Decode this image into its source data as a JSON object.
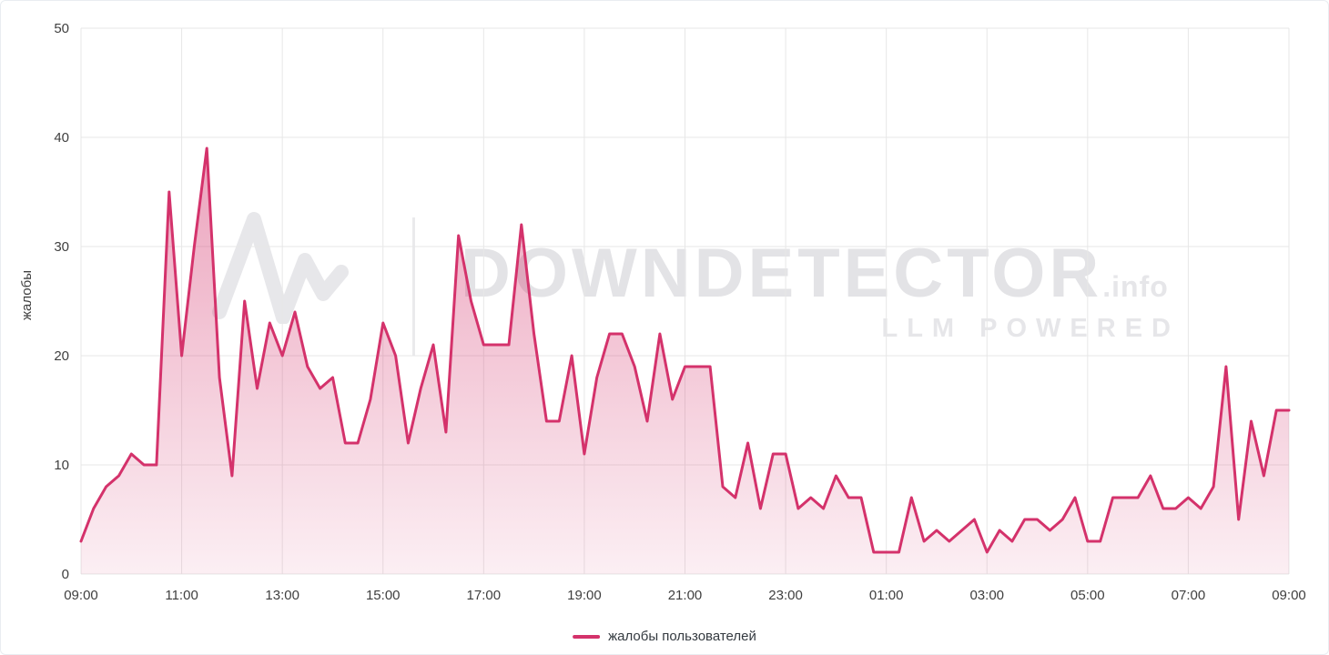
{
  "watermark": {
    "brand": "DOWNDETECTOR",
    "suffix": ".info",
    "tagline": "LLM POWERED"
  },
  "chart_data": {
    "type": "area",
    "title": "",
    "xlabel": "",
    "ylabel": "жалобы",
    "legend": "жалобы пользователей",
    "color": "#d4326b",
    "grid": true,
    "legend_position": "bottom",
    "ylim": [
      0,
      50
    ],
    "y_ticks": [
      0,
      10,
      20,
      30,
      40,
      50
    ],
    "x_ticks": [
      "09:00",
      "11:00",
      "13:00",
      "15:00",
      "17:00",
      "19:00",
      "21:00",
      "23:00",
      "01:00",
      "03:00",
      "05:00",
      "07:00",
      "09:00"
    ],
    "points": [
      [
        "09:00",
        3
      ],
      [
        "09:15",
        6
      ],
      [
        "09:30",
        8
      ],
      [
        "09:45",
        9
      ],
      [
        "10:00",
        11
      ],
      [
        "10:15",
        10
      ],
      [
        "10:30",
        10
      ],
      [
        "10:45",
        35
      ],
      [
        "11:00",
        20
      ],
      [
        "11:15",
        30
      ],
      [
        "11:30",
        39
      ],
      [
        "11:45",
        18
      ],
      [
        "12:00",
        9
      ],
      [
        "12:15",
        25
      ],
      [
        "12:30",
        17
      ],
      [
        "12:45",
        23
      ],
      [
        "13:00",
        20
      ],
      [
        "13:15",
        24
      ],
      [
        "13:30",
        19
      ],
      [
        "13:45",
        17
      ],
      [
        "14:00",
        18
      ],
      [
        "14:15",
        12
      ],
      [
        "14:30",
        12
      ],
      [
        "14:45",
        16
      ],
      [
        "15:00",
        23
      ],
      [
        "15:15",
        20
      ],
      [
        "15:30",
        12
      ],
      [
        "15:45",
        17
      ],
      [
        "16:00",
        21
      ],
      [
        "16:15",
        13
      ],
      [
        "16:30",
        31
      ],
      [
        "16:45",
        25
      ],
      [
        "17:00",
        21
      ],
      [
        "17:15",
        21
      ],
      [
        "17:30",
        21
      ],
      [
        "17:45",
        32
      ],
      [
        "18:00",
        22
      ],
      [
        "18:15",
        14
      ],
      [
        "18:30",
        14
      ],
      [
        "18:45",
        20
      ],
      [
        "19:00",
        11
      ],
      [
        "19:15",
        18
      ],
      [
        "19:30",
        22
      ],
      [
        "19:45",
        22
      ],
      [
        "20:00",
        19
      ],
      [
        "20:15",
        14
      ],
      [
        "20:30",
        22
      ],
      [
        "20:45",
        16
      ],
      [
        "21:00",
        19
      ],
      [
        "21:15",
        19
      ],
      [
        "21:30",
        19
      ],
      [
        "21:45",
        8
      ],
      [
        "22:00",
        7
      ],
      [
        "22:15",
        12
      ],
      [
        "22:30",
        6
      ],
      [
        "22:45",
        11
      ],
      [
        "23:00",
        11
      ],
      [
        "23:15",
        6
      ],
      [
        "23:30",
        7
      ],
      [
        "23:45",
        6
      ],
      [
        "00:00",
        9
      ],
      [
        "00:15",
        7
      ],
      [
        "00:30",
        7
      ],
      [
        "00:45",
        2
      ],
      [
        "01:00",
        2
      ],
      [
        "01:15",
        2
      ],
      [
        "01:30",
        7
      ],
      [
        "01:45",
        3
      ],
      [
        "02:00",
        4
      ],
      [
        "02:15",
        3
      ],
      [
        "02:30",
        4
      ],
      [
        "02:45",
        5
      ],
      [
        "03:00",
        2
      ],
      [
        "03:15",
        4
      ],
      [
        "03:30",
        3
      ],
      [
        "03:45",
        5
      ],
      [
        "04:00",
        5
      ],
      [
        "04:15",
        4
      ],
      [
        "04:30",
        5
      ],
      [
        "04:45",
        7
      ],
      [
        "05:00",
        3
      ],
      [
        "05:15",
        3
      ],
      [
        "05:30",
        7
      ],
      [
        "05:45",
        7
      ],
      [
        "06:00",
        7
      ],
      [
        "06:15",
        9
      ],
      [
        "06:30",
        6
      ],
      [
        "06:45",
        6
      ],
      [
        "07:00",
        7
      ],
      [
        "07:15",
        6
      ],
      [
        "07:30",
        8
      ],
      [
        "07:45",
        19
      ],
      [
        "08:00",
        5
      ],
      [
        "08:15",
        14
      ],
      [
        "08:30",
        9
      ],
      [
        "08:45",
        15
      ],
      [
        "09:00",
        15
      ]
    ]
  }
}
